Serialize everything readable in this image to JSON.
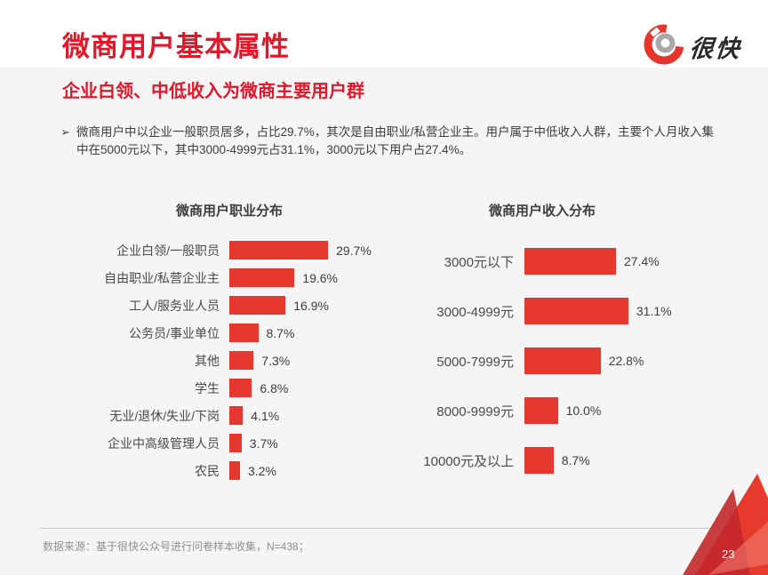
{
  "slide": {
    "title": "微商用户基本属性",
    "subtitle": "企业白领、中低收入为微商主要用户群",
    "logo_text": "很快"
  },
  "summary": {
    "bullet_marker": "➢",
    "text": "微商用户中以企业一般职员居多，占比29.7%，其次是自由职业/私营企业主。用户属于中低收入人群，主要个人月收入集中在5000元以下，其中3000-4999元占31.1%，3000元以下用户占27.4%。"
  },
  "chart_data": [
    {
      "type": "bar",
      "orientation": "horizontal",
      "title": "微商用户职业分布",
      "categories": [
        "企业白领/一般职员",
        "自由职业/私营企业主",
        "工人/服务业人员",
        "公务员/事业单位",
        "其他",
        "学生",
        "无业/退休/失业/下岗",
        "企业中高级管理人员",
        "农民"
      ],
      "values": [
        29.7,
        19.6,
        16.9,
        8.7,
        7.3,
        6.8,
        4.1,
        3.7,
        3.2
      ],
      "value_labels": [
        "29.7%",
        "19.6%",
        "16.9%",
        "8.7%",
        "7.3%",
        "6.8%",
        "4.1%",
        "3.7%",
        "3.2%"
      ],
      "unit": "%",
      "xlim": [
        0,
        35
      ],
      "grid": false,
      "legend": false,
      "bar_color": "#e6382e"
    },
    {
      "type": "bar",
      "orientation": "horizontal",
      "title": "微商用户收入分布",
      "categories": [
        "3000元以下",
        "3000-4999元",
        "5000-7999元",
        "8000-9999元",
        "10000元及以上"
      ],
      "values": [
        27.4,
        31.1,
        22.8,
        10.0,
        8.7
      ],
      "value_labels": [
        "27.4%",
        "31.1%",
        "22.8%",
        "10.0%",
        "8.7%"
      ],
      "unit": "%",
      "xlim": [
        0,
        35
      ],
      "grid": false,
      "legend": false,
      "bar_color": "#e6382e"
    }
  ],
  "footer": {
    "source": "数据来源：基于很快公众号进行问卷样本收集，N=438；",
    "page_number": "23"
  },
  "colors": {
    "title_red": "#e3162a",
    "bar_red": "#e6382e",
    "logo_red": "#e6352b",
    "logo_gray": "#a8a8a8",
    "text_dark": "#3d3d3d",
    "text_gray": "#8f8f8f",
    "background": "#f5f5f5",
    "header_background": "#ffffff",
    "mountain_bright": "#e63a2c",
    "mountain_dark": "#c3282a"
  }
}
